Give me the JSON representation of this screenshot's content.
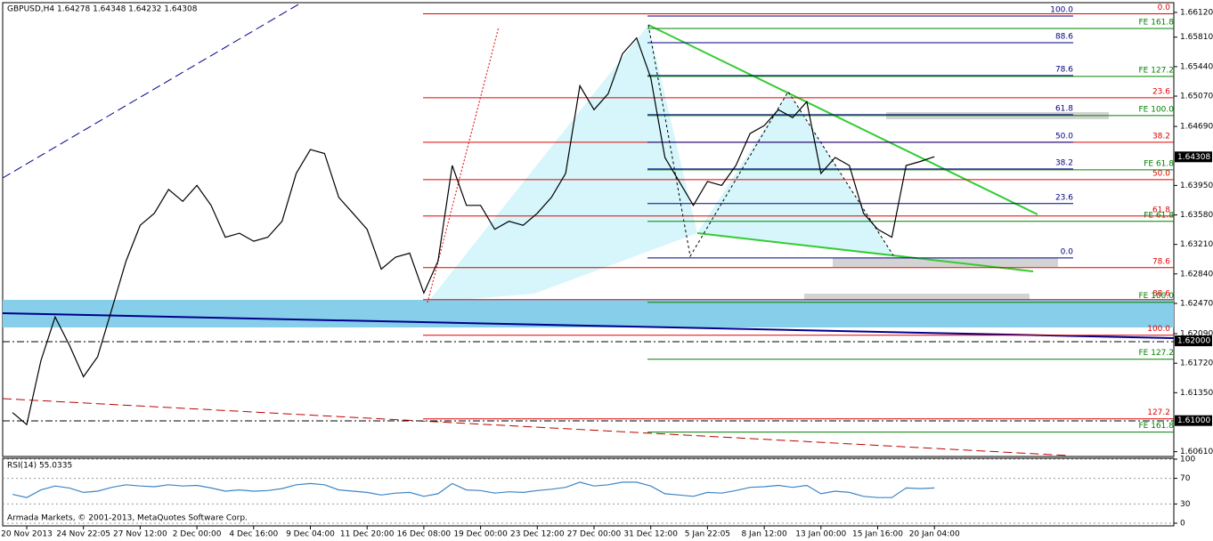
{
  "chart_data": [
    {
      "type": "line",
      "title": "GBPUSD,H4 1.64278 1.64348 1.64232 1.64308",
      "color": "#000000",
      "categories": [
        null,
        "20 Nov 2013",
        null,
        null,
        null,
        "24 Nov 22:05",
        null,
        null,
        null,
        "27 Nov 12:00",
        null,
        null,
        null,
        "2 Dec 00:00",
        null,
        null,
        null,
        "4 Dec 16:00",
        null,
        null,
        null,
        "9 Dec 04:00",
        null,
        null,
        null,
        "11 Dec 20:00",
        null,
        null,
        null,
        "16 Dec 08:00",
        null,
        null,
        null,
        "19 Dec 00:00",
        null,
        null,
        null,
        "23 Dec 12:00",
        null,
        null,
        null,
        "27 Dec 00:00",
        null,
        null,
        null,
        "31 Dec 12:00",
        null,
        null,
        null,
        "5 Jan 22:05",
        null,
        null,
        null,
        "8 Jan 12:00",
        null,
        null,
        null,
        "13 Jan 00:00",
        null,
        null,
        null,
        "15 Jan 16:00",
        null,
        null,
        null,
        "20 Jan 04:00"
      ],
      "values": [
        1.611,
        1.6095,
        1.6175,
        1.623,
        1.6195,
        1.6155,
        1.618,
        1.624,
        1.63,
        1.6345,
        1.636,
        1.639,
        1.6375,
        1.6395,
        1.637,
        1.633,
        1.6335,
        1.6325,
        1.633,
        1.635,
        1.641,
        1.644,
        1.6435,
        1.638,
        1.636,
        1.634,
        1.629,
        1.6305,
        1.631,
        1.626,
        1.63,
        1.642,
        1.637,
        1.637,
        1.634,
        1.635,
        1.6345,
        1.636,
        1.638,
        1.641,
        1.652,
        1.649,
        1.651,
        1.656,
        1.658,
        1.653,
        1.643,
        1.64,
        1.637,
        1.64,
        1.6395,
        1.642,
        1.646,
        1.647,
        1.649,
        1.648,
        1.65,
        1.641,
        1.643,
        1.642,
        1.636,
        1.634,
        1.633,
        1.642,
        1.6425,
        1.6431
      ],
      "ylim": [
        1.6055,
        1.6622
      ],
      "yticks": [
        {
          "value": 1.6612,
          "label": "1.66120"
        },
        {
          "value": 1.6581,
          "label": "1.65810"
        },
        {
          "value": 1.6544,
          "label": "1.65440"
        },
        {
          "value": 1.6507,
          "label": "1.65070"
        },
        {
          "value": 1.6469,
          "label": "1.64690"
        },
        {
          "value": 1.6395,
          "label": "1.63950"
        },
        {
          "value": 1.6358,
          "label": "1.63580"
        },
        {
          "value": 1.6321,
          "label": "1.63210"
        },
        {
          "value": 1.6284,
          "label": "1.62840"
        },
        {
          "value": 1.6247,
          "label": "1.62470"
        },
        {
          "value": 1.6209,
          "label": "1.62090"
        },
        {
          "value": 1.6172,
          "label": "1.61720"
        },
        {
          "value": 1.6135,
          "label": "1.61350"
        },
        {
          "value": 1.6061,
          "label": "1.60610"
        }
      ],
      "price_labels": [
        {
          "value": 1.64308,
          "label": "1.64308"
        },
        {
          "value": 1.62,
          "label": "1.62000"
        },
        {
          "value": 1.61,
          "label": "1.61000"
        }
      ],
      "levels": [
        {
          "color": "#e00000",
          "items": [
            {
              "value": 1.66103,
              "label": "0.0"
            },
            {
              "value": 1.65049,
              "label": "23.6"
            },
            {
              "value": 1.64491,
              "label": "38.2"
            },
            {
              "value": 1.64023,
              "label": "50.0"
            },
            {
              "value": 1.63566,
              "label": "61.8"
            },
            {
              "value": 1.62919,
              "label": "78.6"
            },
            {
              "value": 1.62517,
              "label": "88.6"
            },
            {
              "value": 1.62071,
              "label": "100.0"
            },
            {
              "value": 1.61022,
              "label": "127.2"
            }
          ]
        },
        {
          "color": "#000080",
          "items": [
            {
              "value": 1.66075,
              "label": "100.0"
            },
            {
              "value": 1.6574,
              "label": "88.6"
            },
            {
              "value": 1.65328,
              "label": "78.6"
            },
            {
              "value": 1.64837,
              "label": "61.8"
            },
            {
              "value": 1.64491,
              "label": "50.0"
            },
            {
              "value": 1.64157,
              "label": "38.2"
            },
            {
              "value": 1.63722,
              "label": "23.6"
            },
            {
              "value": 1.63041,
              "label": "0.0"
            }
          ]
        },
        {
          "color": "#008000",
          "items": [
            {
              "value": 1.65919,
              "label": "FE 161.8"
            },
            {
              "value": 1.65317,
              "label": "FE 127.2"
            },
            {
              "value": 1.64826,
              "label": "FE 100.0"
            },
            {
              "value": 1.64146,
              "label": "FE 61.8"
            },
            {
              "value": 1.63499,
              "label": "FE 61.8"
            },
            {
              "value": 1.62484,
              "label": "FE 100.0"
            },
            {
              "value": 1.6177,
              "label": "FE 127.2"
            },
            {
              "value": 1.60855,
              "label": "FE 161.8"
            }
          ]
        }
      ]
    },
    {
      "type": "line",
      "title": "RSI(14) 55.0335",
      "annotation": "Armada Markets, © 2001-2013, MetaQuotes Software Corp.",
      "color": "#3d85c6",
      "values": [
        45,
        40,
        52,
        58,
        55,
        48,
        50,
        56,
        60,
        58,
        57,
        60,
        58,
        59,
        55,
        50,
        52,
        50,
        51,
        54,
        60,
        62,
        60,
        52,
        50,
        48,
        44,
        47,
        48,
        42,
        46,
        62,
        52,
        51,
        47,
        49,
        48,
        51,
        53,
        56,
        64,
        58,
        60,
        64,
        64,
        58,
        46,
        44,
        42,
        48,
        47,
        51,
        56,
        57,
        59,
        56,
        59,
        46,
        50,
        48,
        42,
        40,
        40,
        55,
        54,
        55
      ],
      "ylim": [
        0,
        100
      ],
      "yticks": [
        100,
        70,
        30,
        0
      ],
      "grid": true
    }
  ]
}
